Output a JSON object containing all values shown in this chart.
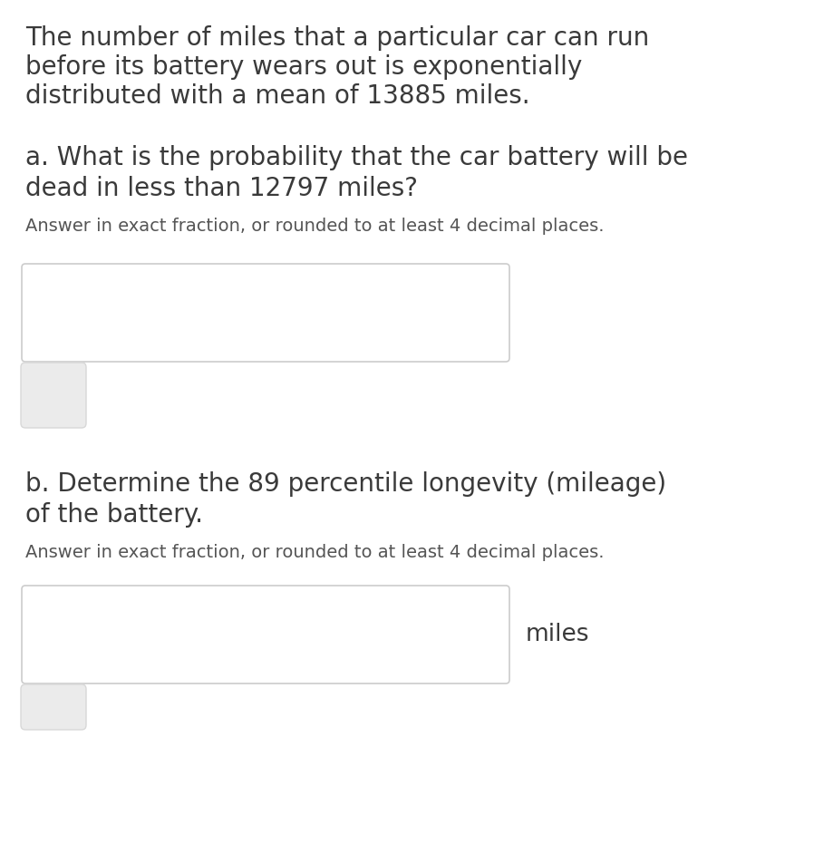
{
  "background_color": "#ffffff",
  "text_color": "#3a3a3a",
  "sub_text_color": "#555555",
  "paragraph1_line1": "The number of miles that a particular car can run",
  "paragraph1_line2": "before its battery wears out is exponentially",
  "paragraph1_line3": "distributed with a mean of 13885 miles.",
  "question_a_line1": "a. What is the probability that the car battery will be",
  "question_a_line2": "dead in less than 12797 miles?",
  "question_a_sub": "Answer in exact fraction, or rounded to at least 4 decimal places.",
  "question_b_line1": "b. Determine the 89 percentile longevity (mileage)",
  "question_b_line2": "of the battery.",
  "question_b_sub": "Answer in exact fraction, or rounded to at least 4 decimal places.",
  "miles_label": "miles",
  "main_fontsize": 20,
  "sub_fontsize": 14,
  "miles_fontsize": 19
}
